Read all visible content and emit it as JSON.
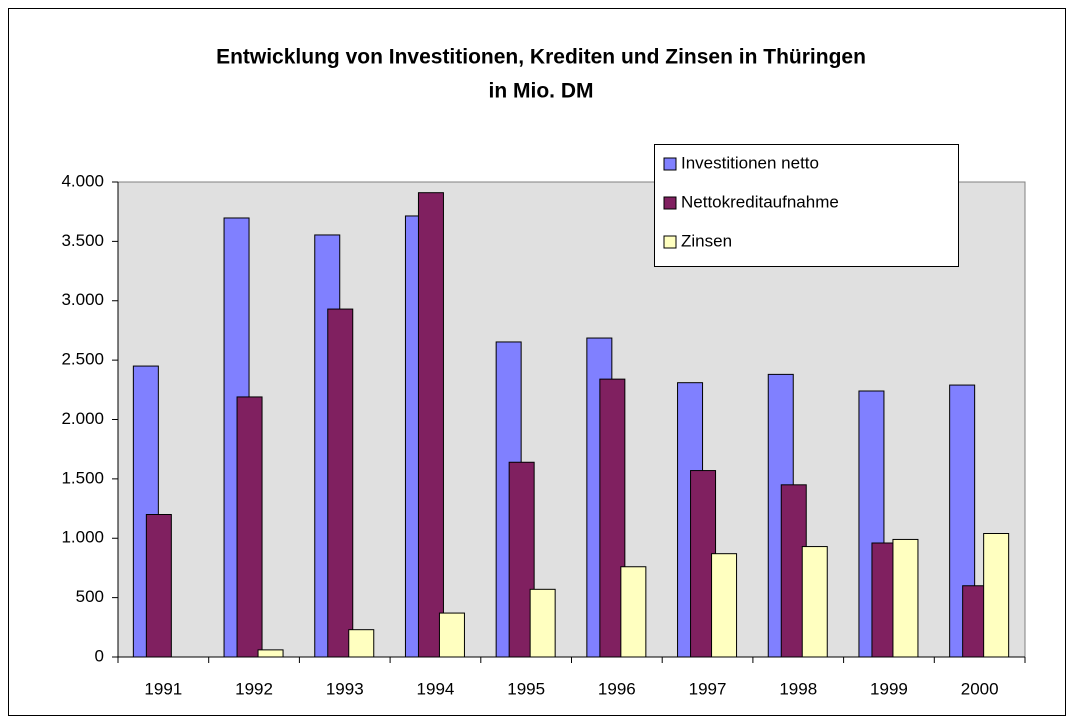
{
  "chart_data": {
    "type": "bar",
    "title": "Entwicklung von Investitionen, Krediten und Zinsen in Thüringen",
    "subtitle": "in Mio. DM",
    "categories": [
      "1991",
      "1992",
      "1993",
      "1994",
      "1995",
      "1996",
      "1997",
      "1998",
      "1999",
      "2000"
    ],
    "series": [
      {
        "name": "Investitionen netto",
        "color": "#8080ff",
        "values": [
          2450,
          3697,
          3554,
          3714,
          2653,
          2686,
          2310,
          2380,
          2240,
          2290
        ]
      },
      {
        "name": "Nettokreditaufnahme",
        "color": "#802060",
        "values": [
          1200,
          2190,
          2930,
          3910,
          1640,
          2340,
          1570,
          1450,
          960,
          600
        ]
      },
      {
        "name": "Zinsen",
        "color": "#ffffc0",
        "values": [
          null,
          60,
          230,
          370,
          570,
          760,
          870,
          930,
          990,
          1040
        ]
      }
    ],
    "ylim": [
      0,
      4000
    ],
    "yticks": [
      0,
      500,
      {
        "value": 1000,
        "label": "1.000"
      },
      {
        "value": 1500,
        "label": "1.500"
      },
      {
        "value": 2000,
        "label": "2.000"
      },
      {
        "value": 2500,
        "label": "2.500"
      },
      {
        "value": 3000,
        "label": "3.000"
      },
      {
        "value": 3500,
        "label": "3.500"
      },
      {
        "value": 4000,
        "label": "4.000"
      }
    ],
    "grid": false,
    "legend": "top-right",
    "plot_background": "#e0e0e0"
  }
}
